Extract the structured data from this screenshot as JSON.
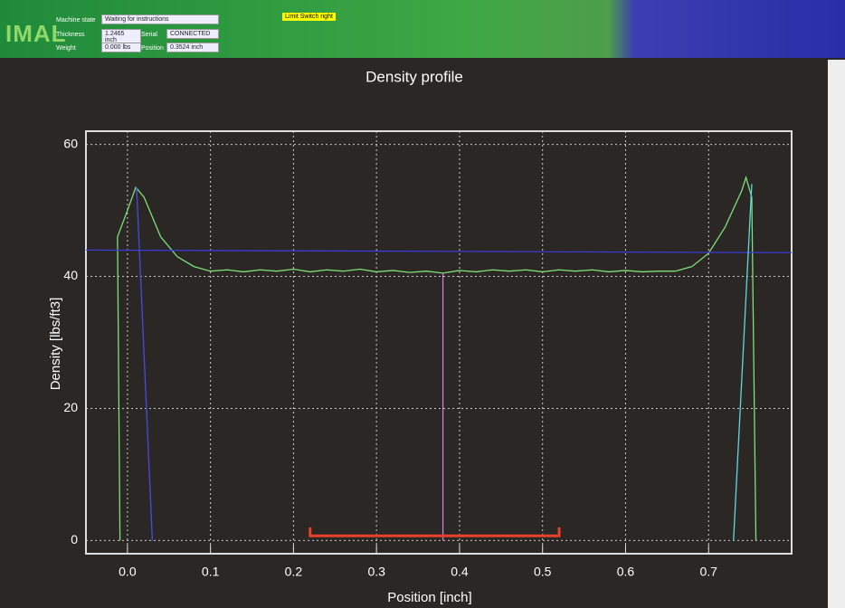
{
  "header": {
    "fields": [
      {
        "label": "Machine state",
        "value": "Waiting for instructions"
      },
      {
        "label": "Thickness",
        "value": "1.2465 inch"
      },
      {
        "label": "Serial",
        "value": "CONNECTED"
      },
      {
        "label": "Weight",
        "value": "0.000 lbs"
      },
      {
        "label": "Position",
        "value": "0.3524 inch"
      }
    ],
    "status": "Limit Switch right",
    "logo": "IMAL"
  },
  "chart_data": {
    "type": "line",
    "title": "Density profile",
    "x_label": "Position [inch]",
    "y_label": "Density [lbs/ft3]",
    "xlim": [
      -0.05,
      0.8
    ],
    "ylim": [
      -2,
      62
    ],
    "xticks": [
      {
        "value": 0,
        "label": "0.0"
      },
      0.1,
      0.2,
      0.3,
      0.4,
      0.5,
      0.6,
      0.7
    ],
    "yticks": [
      0,
      20,
      40,
      60
    ],
    "grid": true,
    "series": [
      {
        "color": "#7ee07a",
        "x": [
          -0.009,
          -0.012,
          0.0,
          0.01,
          0.02,
          0.04,
          0.06,
          0.08,
          0.1,
          0.12,
          0.14,
          0.16,
          0.18,
          0.2,
          0.22,
          0.24,
          0.26,
          0.28,
          0.3,
          0.32,
          0.34,
          0.36,
          0.38,
          0.4,
          0.42,
          0.44,
          0.46,
          0.48,
          0.5,
          0.52,
          0.54,
          0.56,
          0.58,
          0.6,
          0.62,
          0.64,
          0.66,
          0.68,
          0.7,
          0.72,
          0.74,
          0.745,
          0.752,
          0.757
        ],
        "values": [
          0,
          46,
          50,
          53.5,
          52,
          46,
          43,
          41.5,
          40.8,
          41,
          40.7,
          41,
          40.8,
          41.1,
          40.7,
          41,
          40.8,
          41.1,
          40.7,
          40.9,
          40.6,
          40.8,
          40.5,
          40.9,
          40.7,
          41,
          40.8,
          41,
          40.7,
          41,
          40.8,
          41,
          40.7,
          40.9,
          40.7,
          40.8,
          40.8,
          41.5,
          43.5,
          47.5,
          53,
          55,
          52,
          0
        ]
      },
      {
        "color": "#3a3ad8",
        "x": [
          -0.05,
          0.8
        ],
        "values": [
          44,
          43.6
        ]
      },
      {
        "color": "#4a4ae0",
        "x": [
          0.011,
          0.03
        ],
        "values": [
          53.5,
          0
        ]
      },
      {
        "color": "#d77ad7",
        "x": [
          0.38,
          0.38
        ],
        "values": [
          40.5,
          0
        ]
      },
      {
        "color": "#5fd8e0",
        "x": [
          0.752,
          0.73
        ],
        "values": [
          54,
          0
        ]
      },
      {
        "color": "#e8402a",
        "x": [
          0.22,
          0.22,
          0.52,
          0.52
        ],
        "values": [
          2,
          0.7,
          0.7,
          2
        ]
      }
    ]
  }
}
